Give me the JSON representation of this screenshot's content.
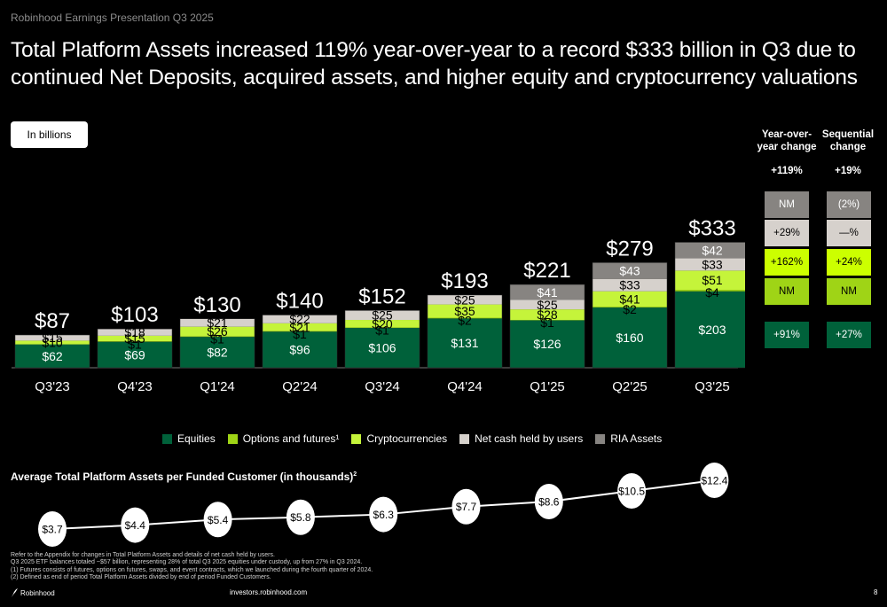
{
  "header": {
    "presentation_label": "Robinhood Earnings Presentation Q3 2025",
    "headline": "Total Platform Assets increased 119% year-over-year to a record $333 billion in Q3 due to continued Net Deposits, acquired assets, and higher equity and cryptocurrency valuations",
    "units_badge": "In billions"
  },
  "colors": {
    "equities": "#00613a",
    "options_futures": "#9fd416",
    "crypto": "#c5f43a",
    "net_cash": "#d6d1cc",
    "ria": "#878481",
    "background": "#000000"
  },
  "chart_data": [
    {
      "type": "bar",
      "stacked": true,
      "title": "Total Platform Assets",
      "units": "In billions",
      "categories": [
        "Q3'23",
        "Q4'23",
        "Q1'24",
        "Q2'24",
        "Q3'24",
        "Q4'24",
        "Q1'25",
        "Q2'25",
        "Q3'25"
      ],
      "series": [
        {
          "name": "Equities",
          "key": "equities",
          "values": [
            62,
            69,
            82,
            96,
            106,
            131,
            126,
            160,
            203
          ],
          "labels": [
            "$62",
            "$69",
            "$82",
            "$96",
            "$106",
            "$131",
            "$126",
            "$160",
            "$203"
          ]
        },
        {
          "name": "Options and futures¹",
          "key": "options_futures",
          "values": [
            0,
            1,
            1,
            1,
            1,
            2,
            1,
            2,
            4
          ],
          "labels": [
            "",
            "$1",
            "$1",
            "$1",
            "$1",
            "$2",
            "$1",
            "$2",
            "$4"
          ]
        },
        {
          "name": "Cryptocurrencies",
          "key": "crypto",
          "values": [
            10,
            15,
            26,
            21,
            20,
            35,
            28,
            41,
            51
          ],
          "labels": [
            "$10",
            "$15",
            "$26",
            "$21",
            "$20",
            "$35",
            "$28",
            "$41",
            "$51"
          ]
        },
        {
          "name": "Net cash held by users",
          "key": "net_cash",
          "values": [
            15,
            18,
            21,
            22,
            25,
            25,
            25,
            33,
            33
          ],
          "labels": [
            "$15",
            "$18",
            "$21",
            "$22",
            "$25",
            "$25",
            "$25",
            "$33",
            "$33"
          ]
        },
        {
          "name": "RIA Assets",
          "key": "ria",
          "values": [
            0,
            0,
            0,
            0,
            0,
            0,
            41,
            43,
            42
          ],
          "labels": [
            "",
            "",
            "",
            "",
            "",
            "",
            "$41",
            "$43",
            "$42"
          ]
        }
      ],
      "totals": [
        "$87",
        "$103",
        "$130",
        "$140",
        "$152",
        "$193",
        "$221",
        "$279",
        "$333"
      ],
      "legend_position": "bottom",
      "grid": false,
      "ylim": [
        0,
        360
      ]
    },
    {
      "type": "line",
      "title": "Average Total Platform Assets per Funded Customer (in thousands)²",
      "categories": [
        "Q3'23",
        "Q4'23",
        "Q1'24",
        "Q2'24",
        "Q3'24",
        "Q4'24",
        "Q1'25",
        "Q2'25",
        "Q3'25"
      ],
      "values": [
        3.7,
        4.4,
        5.4,
        5.8,
        6.3,
        7.7,
        8.6,
        10.5,
        12.4
      ],
      "labels": [
        "$3.7",
        "$4.4",
        "$5.4",
        "$5.8",
        "$6.3",
        "$7.7",
        "$8.6",
        "$10.5",
        "$12.4"
      ],
      "grid": false
    }
  ],
  "changes": {
    "yoy_header": [
      "Year-over-",
      "year change"
    ],
    "seq_header": [
      "Sequential",
      "change"
    ],
    "total": {
      "yoy": "+119%",
      "seq": "+19%"
    },
    "rows": [
      {
        "series": "ria",
        "yoy": "NM",
        "seq": "(2%)",
        "text_color": "#ffffff"
      },
      {
        "series": "net_cash",
        "yoy": "+29%",
        "seq": "—%",
        "text_color": "#000000"
      },
      {
        "series": "crypto",
        "yoy": "+162%",
        "seq": "+24%",
        "text_color": "#000000",
        "fill": "#ccff00"
      },
      {
        "series": "options_futures",
        "yoy": "NM",
        "seq": "NM",
        "text_color": "#000000"
      },
      {
        "series": "equities",
        "yoy": "+91%",
        "seq": "+27%",
        "text_color": "#ffffff"
      }
    ]
  },
  "avg_chart_title": "Average Total Platform Assets per Funded Customer (in thousands)",
  "avg_chart_title_sup": "2",
  "footnotes": [
    "Refer to the Appendix for changes in Total Platform Assets and details of net cash held by users.",
    "Q3 2025 ETF balances totaled ~$57 billion, representing 28% of total Q3 2025 equities under custody, up from 27% in Q3 2024.",
    "(1) Futures consists of futures, options on futures, swaps, and event contracts, which we launched during the fourth quarter of 2024.",
    "(2) Defined as end of period Total Platform Assets divided by end of period Funded Customers."
  ],
  "footer": {
    "brand": "Robinhood",
    "website": "investors.robinhood.com",
    "page_number": "8"
  }
}
